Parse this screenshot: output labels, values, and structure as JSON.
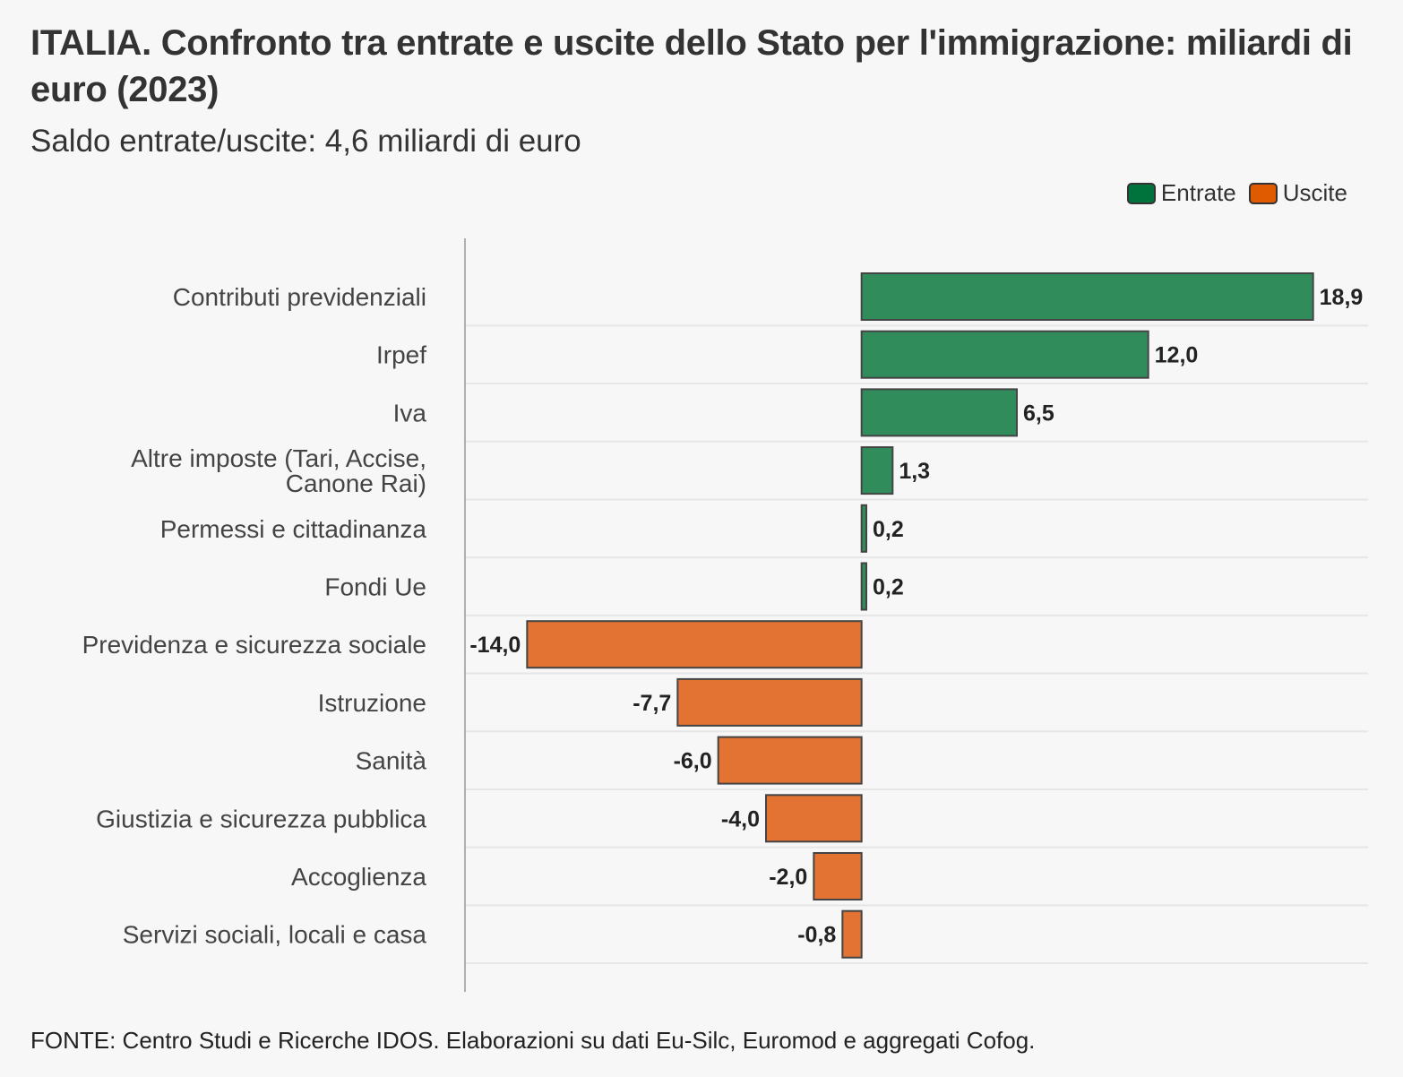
{
  "title": "ITALIA. Confronto tra entrate e uscite dello Stato per l'immigrazione: miliardi di euro (2023)",
  "subtitle": "Saldo entrate/uscite: 4,6 miliardi di euro",
  "source": "FONTE: Centro Studi e Ricerche IDOS. Elaborazioni su dati Eu-Silc, Euromod e aggregati Cofog.",
  "colors": {
    "entrate": "#318c5c",
    "uscite": "#e37333",
    "legend_entrate": "#00733c",
    "legend_uscite": "#e05a00"
  },
  "chart_data": {
    "type": "bar",
    "orientation": "horizontal",
    "title": "ITALIA. Confronto tra entrate e uscite dello Stato per l'immigrazione: miliardi di euro (2023)",
    "subtitle": "Saldo entrate/uscite: 4,6 miliardi di euro",
    "xlabel": "",
    "ylabel": "",
    "xlim": [
      -16.6,
      21.2
    ],
    "grid": true,
    "legend_position": "top-right",
    "legend": [
      {
        "name": "Entrate",
        "color": "#00733c"
      },
      {
        "name": "Uscite",
        "color": "#e05a00"
      }
    ],
    "categories": [
      [
        "Contributi previdenziali"
      ],
      [
        "Irpef"
      ],
      [
        "Iva"
      ],
      [
        "Altre imposte (Tari, Accise,",
        "Canone Rai)"
      ],
      [
        "Permessi e cittadinanza"
      ],
      [
        "Fondi Ue"
      ],
      [
        "Previdenza e sicurezza sociale"
      ],
      [
        "Istruzione"
      ],
      [
        "Sanità"
      ],
      [
        "Giustizia e sicurezza pubblica"
      ],
      [
        "Accoglienza"
      ],
      [
        "Servizi sociali, locali e casa"
      ]
    ],
    "values": [
      18.9,
      12.0,
      6.5,
      1.3,
      0.2,
      0.2,
      -14.0,
      -7.7,
      -6.0,
      -4.0,
      -2.0,
      -0.8
    ],
    "value_labels": [
      "18,9",
      "12,0",
      "6,5",
      "1,3",
      "0,2",
      "0,2",
      "-14,0",
      "-7,7",
      "-6,0",
      "-4,0",
      "-2,0",
      "-0,8"
    ],
    "series_of": [
      "Entrate",
      "Entrate",
      "Entrate",
      "Entrate",
      "Entrate",
      "Entrate",
      "Uscite",
      "Uscite",
      "Uscite",
      "Uscite",
      "Uscite",
      "Uscite"
    ]
  }
}
